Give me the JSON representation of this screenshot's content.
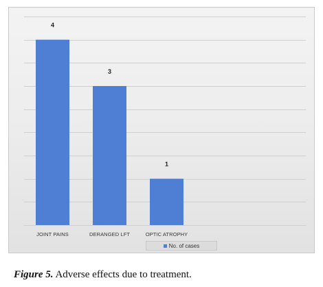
{
  "chart_data": {
    "type": "bar",
    "categories": [
      "JOINT PAINS",
      "DERANGED LFT",
      "OPTIC ATROPHY"
    ],
    "series": [
      {
        "name": "No. of cases",
        "values": [
          4,
          3,
          1
        ]
      }
    ],
    "ylim": [
      0,
      4.5
    ],
    "y_gridline_step": 0.5,
    "grid": true,
    "legend_position": "bottom",
    "bar_color": "#4f7fd4",
    "data_labels": [
      "4",
      "3",
      "1"
    ]
  },
  "caption": {
    "label": "Figure 5.",
    "text": " Adverse effects due to treatment."
  }
}
